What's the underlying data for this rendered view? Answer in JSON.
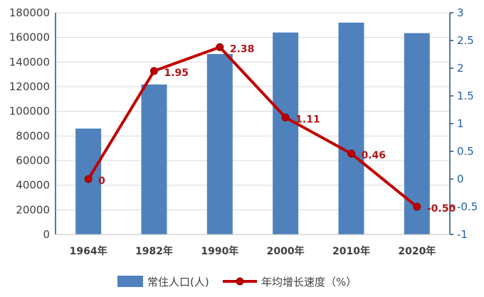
{
  "chart_data": {
    "type": "bar",
    "categories": [
      "1964年",
      "1982年",
      "1990年",
      "2000年",
      "2010年",
      "2020年"
    ],
    "series": [
      {
        "name": "常住人口(人)",
        "type": "bar",
        "axis": "left",
        "values": [
          86000,
          121800,
          146500,
          164000,
          172000,
          163500
        ]
      },
      {
        "name": "年均增长速度（%）",
        "type": "line",
        "axis": "right",
        "values": [
          0,
          1.95,
          2.38,
          1.11,
          0.46,
          -0.5
        ],
        "labels": [
          "0",
          "1.95",
          "2.38",
          "1.11",
          "0.46",
          "-0.50"
        ]
      }
    ],
    "left_axis": {
      "min": 0,
      "max": 180000,
      "step": 20000,
      "ticks": [
        "0",
        "20000",
        "40000",
        "60000",
        "80000",
        "100000",
        "120000",
        "140000",
        "160000",
        "180000"
      ]
    },
    "right_axis": {
      "min": -1,
      "max": 3,
      "step": 0.5,
      "ticks": [
        "-1",
        "-0.5",
        "0",
        "0.5",
        "1",
        "1.5",
        "2",
        "2.5",
        "3"
      ]
    },
    "grid": true,
    "legend_position": "bottom",
    "colors": {
      "bar": "#4f81bd",
      "line": "#c00000",
      "line_label": "#b01818",
      "axis": "#1f4e79",
      "grid": "#d9d9d9"
    }
  }
}
